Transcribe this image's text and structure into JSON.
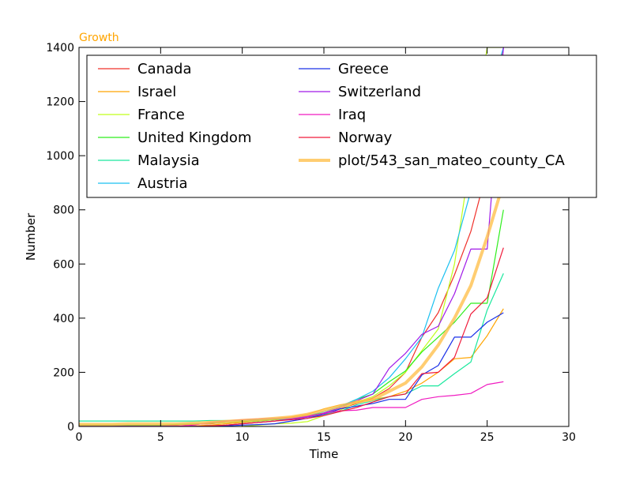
{
  "chart_data": {
    "type": "line",
    "title": "Growth",
    "title_color": "#ffa500",
    "xlabel": "Time",
    "ylabel": "Number",
    "xlim": [
      0,
      30
    ],
    "ylim": [
      0,
      1400
    ],
    "xticks": [
      0,
      5,
      10,
      15,
      20,
      25,
      30
    ],
    "yticks": [
      0,
      200,
      400,
      600,
      800,
      1000,
      1200,
      1400
    ],
    "grid": false,
    "legend_position": "top-right",
    "series": [
      {
        "name": "Canada",
        "color": "#f0302a",
        "x": [
          0,
          1,
          2,
          3,
          4,
          5,
          6,
          7,
          8,
          9,
          10,
          11,
          12,
          13,
          14,
          15,
          16,
          17,
          18,
          19,
          20,
          21,
          22,
          23,
          24,
          25,
          26
        ],
        "y": [
          5,
          5,
          5,
          5,
          5,
          5,
          5,
          8,
          10,
          15,
          18,
          22,
          25,
          28,
          35,
          45,
          65,
          85,
          105,
          140,
          200,
          330,
          420,
          560,
          720,
          950,
          1400
        ]
      },
      {
        "name": "Israel",
        "color": "#ffa500",
        "x": [
          0,
          1,
          2,
          3,
          4,
          5,
          6,
          7,
          8,
          9,
          10,
          11,
          12,
          13,
          14,
          15,
          16,
          17,
          18,
          19,
          20,
          21,
          22,
          23,
          24,
          25,
          26
        ],
        "y": [
          0,
          0,
          0,
          0,
          0,
          0,
          0,
          2,
          5,
          10,
          15,
          20,
          30,
          35,
          45,
          65,
          80,
          90,
          100,
          110,
          130,
          160,
          200,
          250,
          255,
          335,
          435
        ]
      },
      {
        "name": "France",
        "color": "#c0ff1a",
        "x": [
          0,
          1,
          2,
          3,
          4,
          5,
          6,
          7,
          8,
          9,
          10,
          11,
          12,
          13,
          14,
          15,
          16,
          17,
          18,
          19,
          20,
          21,
          22,
          23,
          24,
          25,
          26
        ],
        "y": [
          0,
          0,
          0,
          0,
          0,
          0,
          0,
          0,
          0,
          0,
          0,
          5,
          10,
          12,
          18,
          40,
          60,
          90,
          110,
          150,
          200,
          280,
          360,
          600,
          1000,
          1400,
          1400
        ]
      },
      {
        "name": "United Kingdom",
        "color": "#2eee1c",
        "x": [
          0,
          1,
          2,
          3,
          4,
          5,
          6,
          7,
          8,
          9,
          10,
          11,
          12,
          13,
          14,
          15,
          16,
          17,
          18,
          19,
          20,
          21,
          22,
          23,
          24,
          25,
          26
        ],
        "y": [
          5,
          5,
          5,
          5,
          5,
          5,
          8,
          10,
          12,
          15,
          18,
          20,
          25,
          30,
          40,
          50,
          70,
          100,
          120,
          165,
          205,
          275,
          330,
          385,
          455,
          455,
          800
        ]
      },
      {
        "name": "Malaysia",
        "color": "#1ae89e",
        "x": [
          0,
          1,
          2,
          3,
          4,
          5,
          6,
          7,
          8,
          9,
          10,
          11,
          12,
          13,
          14,
          15,
          16,
          17,
          18,
          19,
          20,
          21,
          22,
          23,
          24,
          25,
          26
        ],
        "y": [
          20,
          20,
          20,
          20,
          20,
          20,
          20,
          20,
          22,
          22,
          22,
          25,
          28,
          30,
          35,
          45,
          55,
          80,
          95,
          110,
          120,
          150,
          150,
          195,
          238,
          430,
          565
        ]
      },
      {
        "name": "Austria",
        "color": "#1ac0f0",
        "x": [
          0,
          1,
          2,
          3,
          4,
          5,
          6,
          7,
          8,
          9,
          10,
          11,
          12,
          13,
          14,
          15,
          16,
          17,
          18,
          19,
          20,
          21,
          22,
          23,
          24,
          25,
          26
        ],
        "y": [
          0,
          0,
          0,
          0,
          0,
          0,
          0,
          0,
          2,
          5,
          10,
          15,
          20,
          30,
          40,
          55,
          75,
          100,
          130,
          180,
          250,
          330,
          510,
          650,
          870,
          1200,
          1400
        ]
      },
      {
        "name": "Greece",
        "color": "#1a30e8",
        "x": [
          0,
          1,
          2,
          3,
          4,
          5,
          6,
          7,
          8,
          9,
          10,
          11,
          12,
          13,
          14,
          15,
          16,
          17,
          18,
          19,
          20,
          21,
          22,
          23,
          24,
          25,
          26
        ],
        "y": [
          0,
          0,
          0,
          0,
          0,
          0,
          0,
          0,
          0,
          2,
          5,
          7,
          10,
          20,
          30,
          45,
          65,
          75,
          85,
          100,
          100,
          190,
          225,
          330,
          330,
          385,
          420
        ]
      },
      {
        "name": "Switzerland",
        "color": "#a01ae8",
        "x": [
          0,
          1,
          2,
          3,
          4,
          5,
          6,
          7,
          8,
          9,
          10,
          11,
          12,
          13,
          14,
          15,
          16,
          17,
          18,
          19,
          20,
          21,
          22,
          23,
          24,
          25,
          26
        ],
        "y": [
          0,
          0,
          0,
          0,
          0,
          0,
          0,
          0,
          2,
          5,
          10,
          15,
          20,
          28,
          35,
          50,
          70,
          95,
          120,
          215,
          270,
          340,
          370,
          490,
          655,
          655,
          1400
        ]
      },
      {
        "name": "Iraq",
        "color": "#f01ac0",
        "x": [
          0,
          1,
          2,
          3,
          4,
          5,
          6,
          7,
          8,
          9,
          10,
          11,
          12,
          13,
          14,
          15,
          16,
          17,
          18,
          19,
          20,
          21,
          22,
          23,
          24,
          25,
          26
        ],
        "y": [
          0,
          0,
          0,
          0,
          0,
          0,
          0,
          5,
          15,
          20,
          25,
          28,
          30,
          32,
          38,
          48,
          58,
          60,
          70,
          70,
          70,
          100,
          110,
          115,
          122,
          155,
          165
        ]
      },
      {
        "name": "Norway",
        "color": "#f01a3a",
        "x": [
          0,
          1,
          2,
          3,
          4,
          5,
          6,
          7,
          8,
          9,
          10,
          11,
          12,
          13,
          14,
          15,
          16,
          17,
          18,
          19,
          20,
          21,
          22,
          23,
          24,
          25,
          26
        ],
        "y": [
          0,
          0,
          0,
          0,
          0,
          0,
          0,
          0,
          2,
          5,
          10,
          15,
          20,
          25,
          30,
          40,
          55,
          70,
          90,
          110,
          120,
          195,
          200,
          255,
          415,
          475,
          660
        ]
      },
      {
        "name": "plot/543_san_mateo_county_CA",
        "color": "#ffc04d",
        "x": [
          0,
          1,
          2,
          3,
          4,
          5,
          6,
          7,
          8,
          9,
          10,
          11,
          12,
          13,
          14,
          15,
          16,
          17,
          18,
          19,
          20,
          21,
          22,
          23,
          24,
          25,
          26
        ],
        "y": [
          8,
          8,
          8,
          10,
          10,
          10,
          10,
          12,
          15,
          18,
          22,
          25,
          30,
          35,
          45,
          60,
          75,
          90,
          100,
          130,
          160,
          220,
          300,
          400,
          520,
          700,
          900
        ],
        "thick": true
      }
    ]
  }
}
